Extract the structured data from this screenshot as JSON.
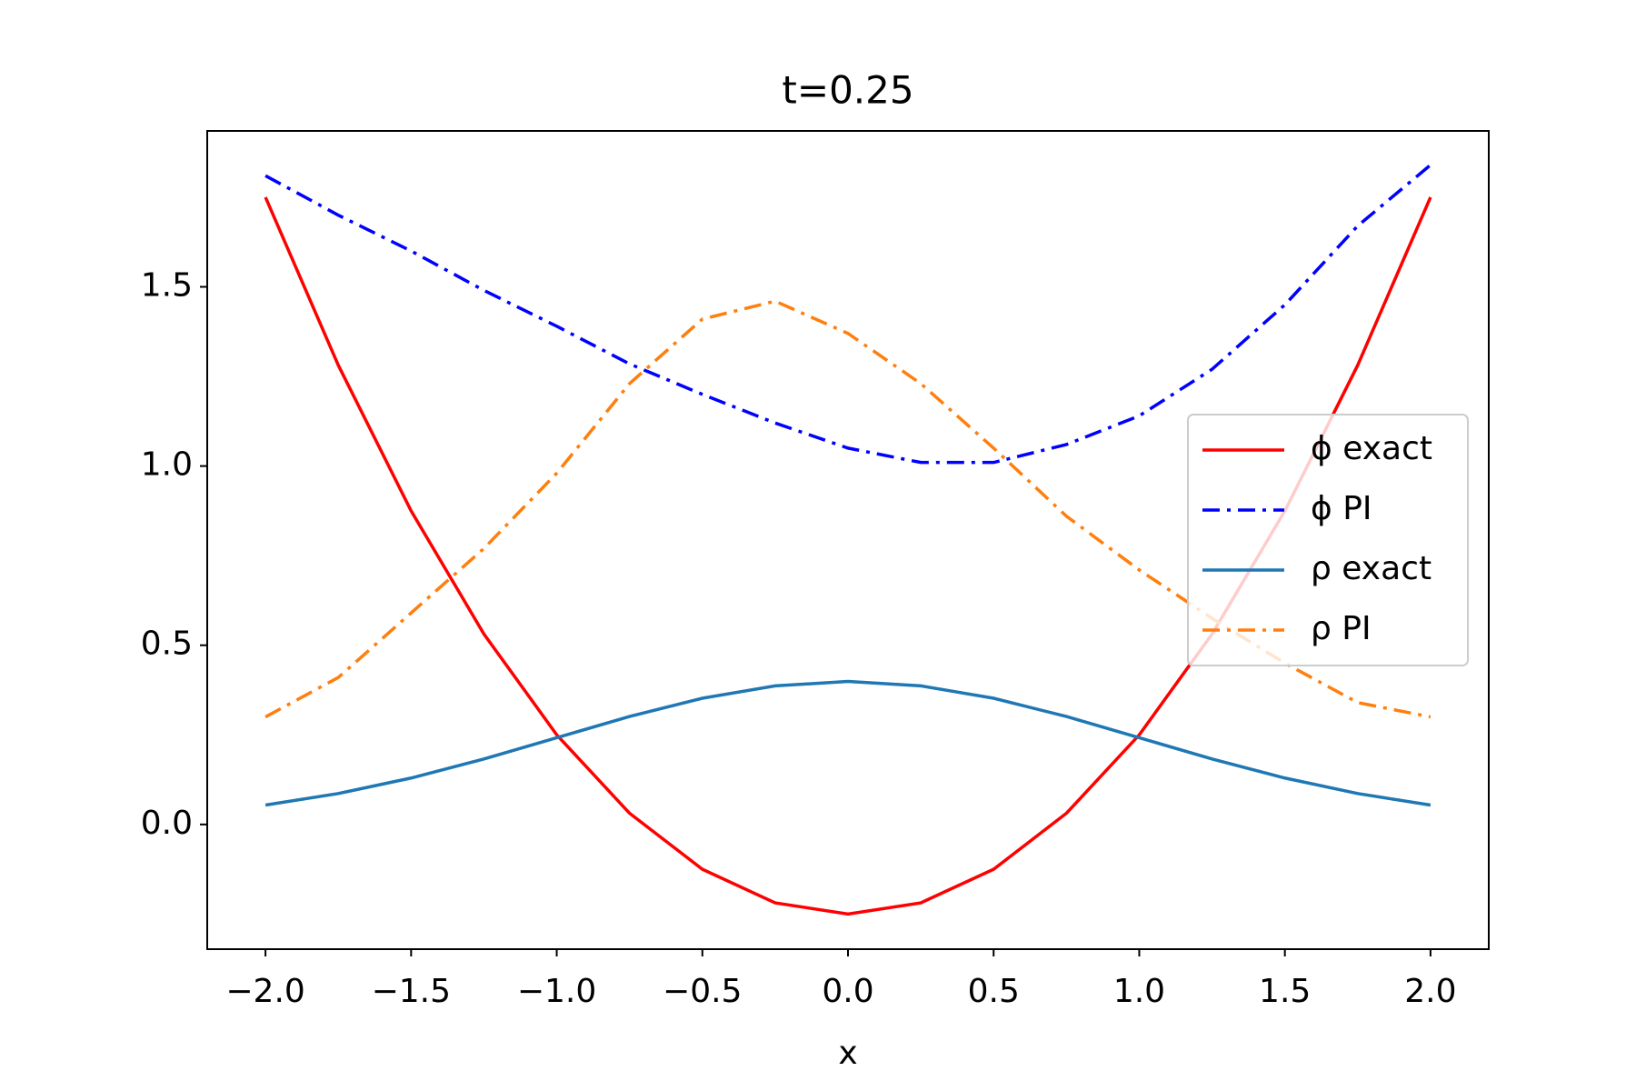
{
  "chart_data": {
    "type": "line",
    "title": "t=0.25",
    "x_label": "x",
    "x": [
      -2.0,
      -1.75,
      -1.5,
      -1.25,
      -1.0,
      -0.75,
      -0.5,
      -0.25,
      0.0,
      0.25,
      0.5,
      0.75,
      1.0,
      1.25,
      1.5,
      1.75,
      2.0
    ],
    "series": [
      {
        "name": "ϕ exact",
        "color": "#ff0000",
        "style": "solid",
        "values": [
          1.75,
          1.28125,
          0.875,
          0.53125,
          0.25,
          0.03125,
          -0.125,
          -0.21875,
          -0.25,
          -0.21875,
          -0.125,
          0.03125,
          0.25,
          0.53125,
          0.875,
          1.28125,
          1.75
        ]
      },
      {
        "name": "ϕ PI",
        "color": "#0000ff",
        "style": "dashdot",
        "values": [
          1.81,
          1.7,
          1.6,
          1.49,
          1.39,
          1.285,
          1.2,
          1.12,
          1.05,
          1.01,
          1.01,
          1.06,
          1.14,
          1.27,
          1.45,
          1.67,
          1.84
        ]
      },
      {
        "name": "ρ exact",
        "color": "#1f77b4",
        "style": "solid",
        "values": [
          0.054,
          0.0863,
          0.1295,
          0.1826,
          0.242,
          0.3011,
          0.3521,
          0.3867,
          0.3989,
          0.3867,
          0.3521,
          0.3011,
          0.242,
          0.1826,
          0.1295,
          0.0863,
          0.054
        ]
      },
      {
        "name": "ρ PI",
        "color": "#ff7f0e",
        "style": "dashdot",
        "values": [
          0.3,
          0.41,
          0.59,
          0.77,
          0.98,
          1.23,
          1.41,
          1.46,
          1.37,
          1.23,
          1.05,
          0.86,
          0.71,
          0.575,
          0.45,
          0.34,
          0.3
        ]
      }
    ],
    "xlim": [
      -2.2,
      2.2
    ],
    "ylim": [
      -0.348,
      1.935
    ],
    "xticks": [
      {
        "value": -2.0,
        "label": "−2.0"
      },
      {
        "value": -1.5,
        "label": "−1.5"
      },
      {
        "value": -1.0,
        "label": "−1.0"
      },
      {
        "value": -0.5,
        "label": "−0.5"
      },
      {
        "value": 0.0,
        "label": "0.0"
      },
      {
        "value": 0.5,
        "label": "0.5"
      },
      {
        "value": 1.0,
        "label": "1.0"
      },
      {
        "value": 1.5,
        "label": "1.5"
      },
      {
        "value": 2.0,
        "label": "2.0"
      }
    ],
    "yticks": [
      {
        "value": 0.0,
        "label": "0.0"
      },
      {
        "value": 0.5,
        "label": "0.5"
      },
      {
        "value": 1.0,
        "label": "1.0"
      },
      {
        "value": 1.5,
        "label": "1.5"
      }
    ],
    "grid": false,
    "legend_position": "right"
  }
}
